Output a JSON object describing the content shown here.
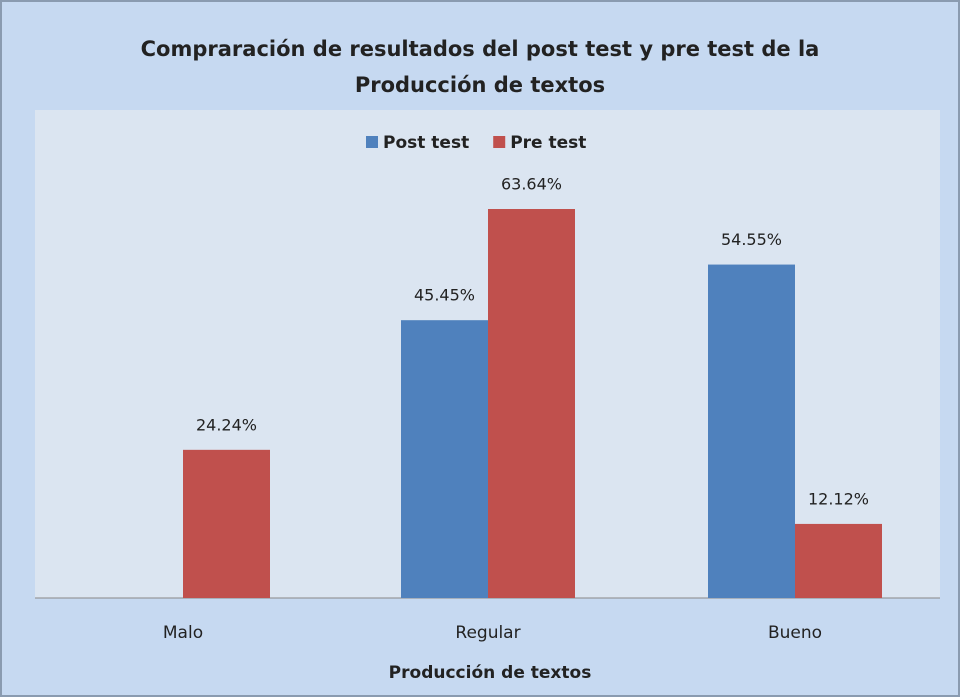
{
  "chart_data": {
    "type": "bar",
    "title": [
      "Compraración de resultados del post test y pre test de la",
      "Producción de textos"
    ],
    "x_label": "Producción de textos",
    "categories": [
      "Malo",
      "Regular",
      "Bueno"
    ],
    "series": [
      {
        "name": "Post test",
        "color": "#4f81bd",
        "values": [
          null,
          45.45,
          54.55
        ],
        "value_labels": [
          null,
          "45.45%",
          "54.55%"
        ]
      },
      {
        "name": "Pre test",
        "color": "#c0504d",
        "values": [
          24.24,
          63.64,
          12.12
        ],
        "value_labels": [
          "24.24%",
          "63.64%",
          "12.12%"
        ]
      }
    ],
    "ylim": [
      0,
      80
    ],
    "legend": "top"
  }
}
